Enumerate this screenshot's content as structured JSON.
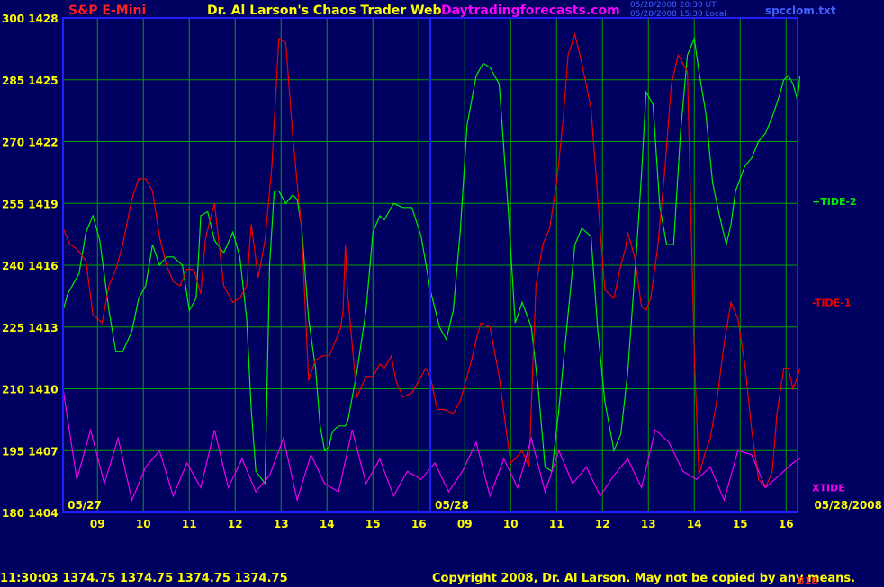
{
  "header": {
    "instrument": "S&P E-Mini",
    "title": "Dr. Al Larson's Chaos Trader Web",
    "site": "Daytradingforecasts.com",
    "timestamp_ut": "05/28/2008 20:30 UT",
    "timestamp_local": "05/28/2008 15:30 Local",
    "file": "spcclom.txt"
  },
  "footer": {
    "quote": "11:30:03  1374.75 1374.75 1374.75 1374.75",
    "copyright": "Copyright 2008, Dr. Al Larson. May not be copied by any means.",
    "stamp": "818"
  },
  "colors": {
    "background": "#000060",
    "grid": "#00a000",
    "frame": "#2020ff",
    "tide_plus2": "#00ee00",
    "tide_minus1": "#ee0000",
    "xtide": "#ee00ee",
    "tick_text": "#ffff00",
    "header_red": "#ff2020",
    "header_yellow": "#ffff00",
    "header_magenta": "#ff00ff",
    "header_blue": "#4060ff"
  },
  "chart_data": {
    "type": "line",
    "y_left_ticks": [
      "300 1428",
      "285 1425",
      "270 1422",
      "255 1419",
      "240 1416",
      "225 1413",
      "210 1410",
      "195 1407",
      "180 1404"
    ],
    "ylim": [
      180,
      300
    ],
    "x_hour_labels": [
      "09",
      "10",
      "11",
      "12",
      "13",
      "14",
      "15",
      "16",
      "09",
      "10",
      "11",
      "12",
      "13",
      "14",
      "15",
      "16"
    ],
    "date_labels": [
      "05/27",
      "05/28",
      "05/28/2008"
    ],
    "xlim": [
      0,
      16
    ],
    "series": [
      {
        "name": "+TIDE-2",
        "color_key": "tide_plus2",
        "x": [
          0,
          0.1,
          0.2,
          0.35,
          0.5,
          0.65,
          0.8,
          1.0,
          1.15,
          1.3,
          1.5,
          1.65,
          1.8,
          1.95,
          2.1,
          2.25,
          2.4,
          2.6,
          2.75,
          2.9,
          2.95,
          3.0,
          3.15,
          3.3,
          3.5,
          3.7,
          3.85,
          4.0,
          4.1,
          4.2,
          4.4,
          4.5,
          4.6,
          4.7,
          4.85,
          5.0,
          5.1,
          5.2,
          5.35,
          5.5,
          5.6,
          5.7,
          5.8,
          5.85,
          5.9,
          6.0,
          6.1,
          6.15,
          6.2,
          6.4,
          6.6,
          6.75,
          6.9,
          7.0,
          7.2,
          7.4,
          7.6,
          7.8,
          8.0,
          8.2,
          8.35,
          8.5,
          8.65,
          8.8,
          9.0,
          9.15,
          9.3,
          9.5,
          9.7,
          9.85,
          10.0,
          10.2,
          10.35,
          10.5,
          10.65,
          10.8,
          11.0,
          11.15,
          11.3,
          11.5,
          11.65,
          11.8,
          12.0,
          12.15,
          12.3,
          12.5,
          12.6,
          12.7,
          12.85,
          13.0,
          13.15,
          13.3,
          13.45,
          13.6,
          13.75,
          13.85,
          14.0,
          14.15,
          14.3,
          14.45,
          14.55,
          14.65,
          14.85,
          15.0,
          15.15,
          15.3,
          15.45,
          15.6,
          15.7,
          15.8,
          15.9,
          16.0,
          16.05
        ],
        "y": [
          229,
          233,
          235,
          238,
          248,
          252,
          246,
          229,
          219,
          219,
          224,
          232,
          235,
          245,
          240,
          242,
          242,
          240,
          229,
          232,
          242,
          252,
          253,
          246,
          243,
          248,
          242,
          227,
          205,
          190,
          187,
          240,
          258,
          258,
          255,
          257,
          256,
          249,
          227,
          215,
          201,
          195,
          196,
          199,
          200,
          201,
          201,
          201,
          202,
          214,
          229,
          248,
          252,
          251,
          255,
          254,
          254,
          247,
          234,
          225,
          222,
          229,
          248,
          274,
          286,
          289,
          288,
          284,
          253,
          226,
          231,
          225,
          210,
          191,
          190,
          205,
          228,
          245,
          249,
          247,
          224,
          207,
          195,
          199,
          214,
          245,
          262,
          282,
          279,
          254,
          245,
          245,
          272,
          291,
          295,
          287,
          277,
          260,
          252,
          245,
          250,
          258,
          264,
          266,
          270,
          272,
          276,
          281,
          285,
          286,
          284,
          280,
          286
        ],
        "label_y": 255.5
      },
      {
        "name": "-TIDE-1",
        "color_key": "tide_minus1",
        "x": [
          0,
          0.15,
          0.3,
          0.5,
          0.65,
          0.85,
          1.0,
          1.15,
          1.3,
          1.5,
          1.65,
          1.8,
          1.95,
          2.1,
          2.25,
          2.4,
          2.55,
          2.7,
          2.85,
          3.0,
          3.1,
          3.2,
          3.3,
          3.5,
          3.7,
          3.85,
          4.0,
          4.1,
          4.25,
          4.4,
          4.55,
          4.7,
          4.85,
          5.0,
          5.2,
          5.35,
          5.5,
          5.65,
          5.8,
          5.95,
          6.05,
          6.1,
          6.15,
          6.2,
          6.4,
          6.6,
          6.75,
          6.9,
          7.0,
          7.15,
          7.25,
          7.4,
          7.6,
          7.75,
          7.9,
          8.0,
          8.15,
          8.3,
          8.5,
          8.65,
          8.75,
          8.9,
          9.0,
          9.1,
          9.3,
          9.5,
          9.65,
          9.75,
          9.85,
          10.0,
          10.15,
          10.3,
          10.45,
          10.6,
          10.75,
          10.9,
          11.0,
          11.15,
          11.3,
          11.5,
          11.65,
          11.8,
          12.0,
          12.15,
          12.25,
          12.3,
          12.45,
          12.6,
          12.7,
          12.8,
          12.95,
          13.1,
          13.25,
          13.4,
          13.6,
          13.75,
          13.85,
          14.0,
          14.1,
          14.25,
          14.4,
          14.55,
          14.7,
          14.85,
          15.0,
          15.15,
          15.3,
          15.45,
          15.55,
          15.7,
          15.8,
          15.9,
          16.0,
          16.05
        ],
        "y": [
          249,
          245,
          244,
          241,
          228,
          226,
          235,
          239,
          245,
          256,
          261,
          261,
          258,
          247,
          240,
          236,
          235,
          239,
          239,
          233,
          246,
          251,
          255,
          235,
          231,
          232,
          235,
          250,
          237,
          246,
          264,
          295,
          294,
          272,
          248,
          212,
          217,
          218,
          218,
          222,
          225,
          229,
          245,
          233,
          208,
          213,
          213,
          216,
          215,
          218,
          212,
          208,
          209,
          212,
          215,
          213,
          205,
          205,
          204,
          207,
          211,
          217,
          222,
          226,
          225,
          213,
          200,
          192,
          193,
          195,
          191,
          235,
          245,
          249,
          260,
          276,
          291,
          296,
          289,
          278,
          256,
          234,
          232,
          240,
          244,
          248,
          242,
          230,
          229,
          232,
          244,
          262,
          284,
          291,
          287,
          218,
          189,
          195,
          198,
          208,
          221,
          231,
          227,
          216,
          200,
          188,
          186,
          190,
          204,
          215,
          215,
          210,
          213,
          215
        ],
        "label_y": 231
      },
      {
        "name": "XTIDE",
        "color_key": "xtide",
        "x": [
          0,
          0.3,
          0.6,
          0.9,
          1.2,
          1.5,
          1.8,
          2.1,
          2.4,
          2.7,
          3.0,
          3.3,
          3.6,
          3.9,
          4.2,
          4.5,
          4.8,
          5.1,
          5.4,
          5.7,
          6.0,
          6.3,
          6.6,
          6.9,
          7.2,
          7.5,
          7.8,
          8.1,
          8.4,
          8.7,
          9.0,
          9.3,
          9.6,
          9.9,
          10.2,
          10.5,
          10.8,
          11.1,
          11.4,
          11.7,
          12.0,
          12.3,
          12.6,
          12.9,
          13.2,
          13.5,
          13.8,
          14.1,
          14.4,
          14.7,
          15.0,
          15.3,
          15.6,
          15.9,
          16.05
        ],
        "y": [
          210,
          188,
          200,
          187,
          198,
          183,
          191,
          195,
          184,
          192,
          186,
          200,
          186,
          193,
          185,
          189,
          198,
          183,
          194,
          187,
          185,
          200,
          187,
          193,
          184,
          190,
          188,
          192,
          185,
          190,
          197,
          184,
          193,
          186,
          198,
          185,
          195,
          187,
          191,
          184,
          189,
          193,
          186,
          200,
          197,
          190,
          188,
          191,
          183,
          195,
          194,
          186,
          189,
          192,
          193
        ],
        "label_y": 186
      }
    ]
  }
}
